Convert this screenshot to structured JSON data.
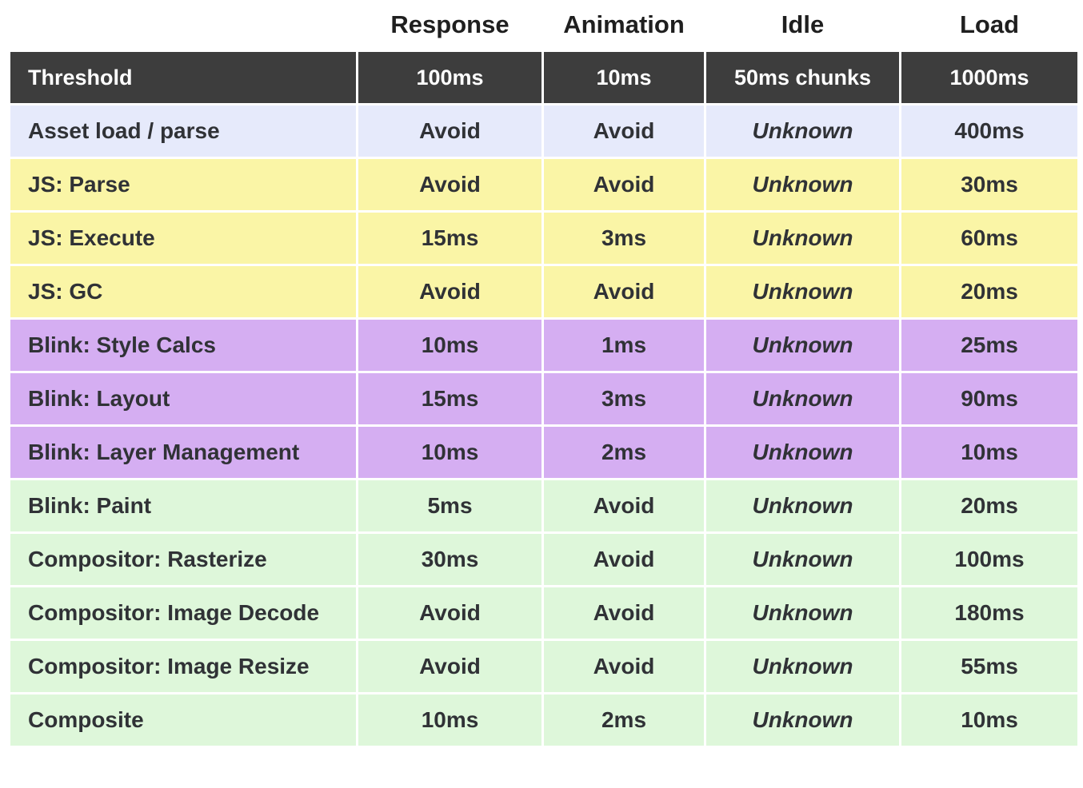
{
  "colors": {
    "page-bg": "#ffffff",
    "header-row-bg": "#3d3d3d",
    "header-row-text": "#ffffff",
    "group-blue": "#e6eafb",
    "group-yellow": "#faf5a6",
    "group-purple": "#d5aef2",
    "group-green": "#def7da",
    "avoid-red": "#e84340",
    "unknown-gray": "#55585c",
    "body-text": "#303236",
    "top-header-text": "#1f1f1f"
  },
  "chart_data": {
    "type": "table",
    "column_headers": [
      "Response",
      "Animation",
      "Idle",
      "Load"
    ],
    "threshold_row": {
      "label": "Threshold",
      "values": [
        "100ms",
        "10ms",
        "50ms chunks",
        "1000ms"
      ]
    },
    "rows": [
      {
        "label": "Asset load / parse",
        "group": "blue",
        "values": [
          "Avoid",
          "Avoid",
          "Unknown",
          "400ms"
        ]
      },
      {
        "label": "JS: Parse",
        "group": "yellow",
        "values": [
          "Avoid",
          "Avoid",
          "Unknown",
          "30ms"
        ]
      },
      {
        "label": "JS: Execute",
        "group": "yellow",
        "values": [
          "15ms",
          "3ms",
          "Unknown",
          "60ms"
        ]
      },
      {
        "label": "JS: GC",
        "group": "yellow",
        "values": [
          "Avoid",
          "Avoid",
          "Unknown",
          "20ms"
        ]
      },
      {
        "label": "Blink: Style Calcs",
        "group": "purple",
        "values": [
          "10ms",
          "1ms",
          "Unknown",
          "25ms"
        ]
      },
      {
        "label": "Blink: Layout",
        "group": "purple",
        "values": [
          "15ms",
          "3ms",
          "Unknown",
          "90ms"
        ]
      },
      {
        "label": "Blink: Layer Management",
        "group": "purple",
        "values": [
          "10ms",
          "2ms",
          "Unknown",
          "10ms"
        ]
      },
      {
        "label": "Blink: Paint",
        "group": "green",
        "values": [
          "5ms",
          "Avoid",
          "Unknown",
          "20ms"
        ]
      },
      {
        "label": "Compositor: Rasterize",
        "group": "green",
        "values": [
          "30ms",
          "Avoid",
          "Unknown",
          "100ms"
        ]
      },
      {
        "label": "Compositor: Image Decode",
        "group": "green",
        "values": [
          "Avoid",
          "Avoid",
          "Unknown",
          "180ms"
        ]
      },
      {
        "label": "Compositor: Image Resize",
        "group": "green",
        "values": [
          "Avoid",
          "Avoid",
          "Unknown",
          "55ms"
        ]
      },
      {
        "label": "Composite",
        "group": "green",
        "values": [
          "10ms",
          "2ms",
          "Unknown",
          "10ms"
        ]
      }
    ]
  }
}
